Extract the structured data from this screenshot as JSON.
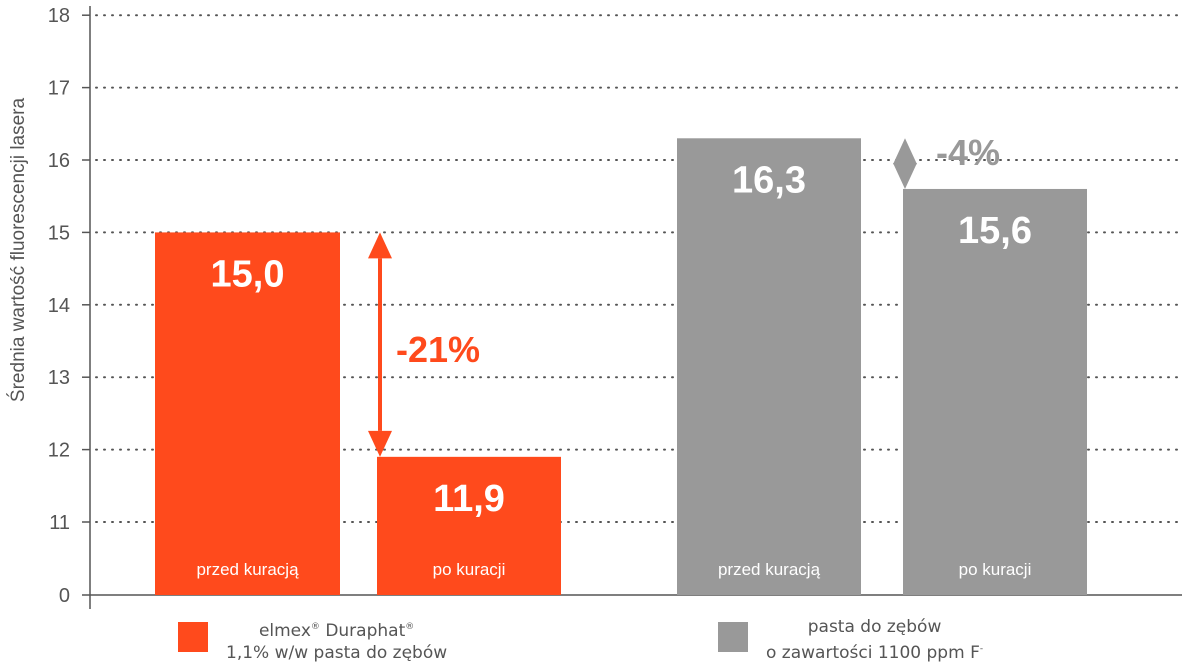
{
  "chart_data": {
    "type": "bar",
    "ylabel": "Średnia wartość fluorescencji lasera",
    "y_ticks": [
      "0",
      "11",
      "12",
      "13",
      "14",
      "15",
      "16",
      "17",
      "18"
    ],
    "y_axis_note": "broken axis: 0, then 11 to 18",
    "grid": "dotted horizontal",
    "groups": [
      {
        "legend": {
          "brand": "elmex",
          "brand_sup": "®",
          "product": "Duraphat",
          "product_sup": "®",
          "line2": "1,1% w/w pasta do zębów"
        },
        "color": "#ff4a1c",
        "bars": [
          {
            "label": "przed kuracją",
            "value": 15.0,
            "value_label": "15,0"
          },
          {
            "label": "po kuracji",
            "value": 11.9,
            "value_label": "11,9"
          }
        ],
        "change_label": "-21%"
      },
      {
        "legend": {
          "line1": "pasta do zębów",
          "line2": "o zawartości 1100 ppm F",
          "line2_sup": "-"
        },
        "color": "#999999",
        "bars": [
          {
            "label": "przed kuracją",
            "value": 16.3,
            "value_label": "16,3"
          },
          {
            "label": "po kuracji",
            "value": 15.6,
            "value_label": "15,6"
          }
        ],
        "change_label": "-4%"
      }
    ]
  }
}
